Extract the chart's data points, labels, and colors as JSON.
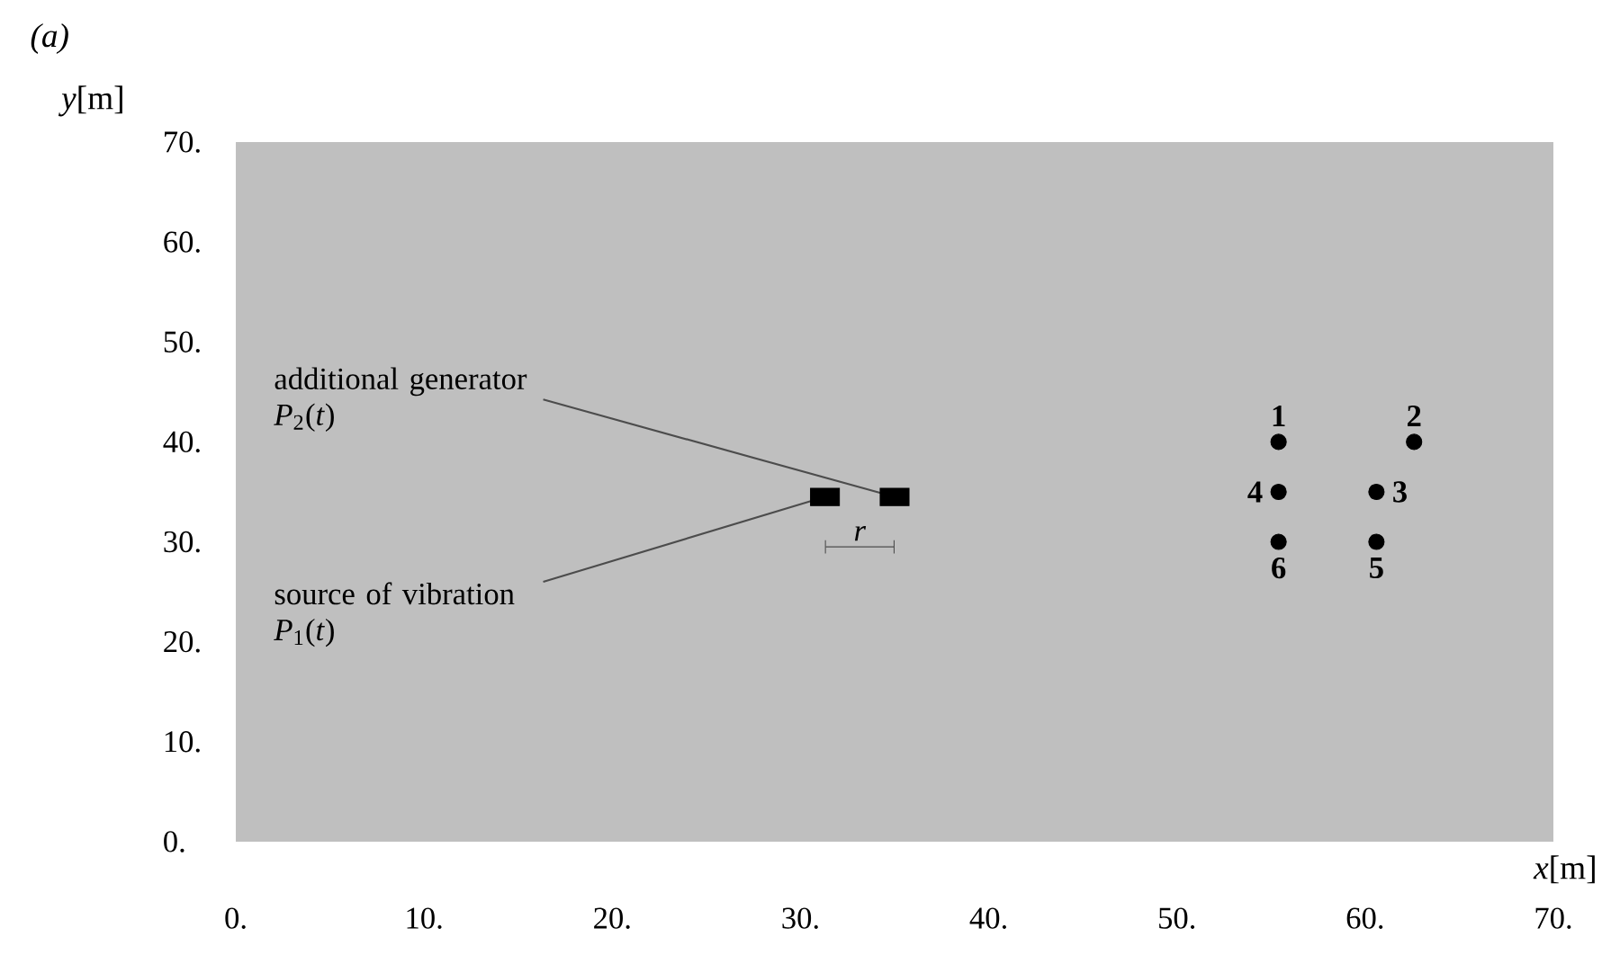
{
  "chart_data": {
    "type": "scatter",
    "title": "*(a)*",
    "xlabel": "*x*[m]",
    "ylabel": "*y*[m]",
    "xlim": [
      0,
      70
    ],
    "ylim": [
      0,
      70
    ],
    "xticks": [
      {
        "value": 0,
        "label": "0."
      },
      {
        "value": 10,
        "label": "10."
      },
      {
        "value": 20,
        "label": "20."
      },
      {
        "value": 30,
        "label": "30."
      },
      {
        "value": 40,
        "label": "40."
      },
      {
        "value": 50,
        "label": "50."
      },
      {
        "value": 60,
        "label": "60."
      },
      {
        "value": 70,
        "label": "70."
      }
    ],
    "yticks": [
      {
        "value": 0,
        "label": "0."
      },
      {
        "value": 10,
        "label": "10."
      },
      {
        "value": 20,
        "label": "20."
      },
      {
        "value": 30,
        "label": "30."
      },
      {
        "value": 40,
        "label": "40."
      },
      {
        "value": 50,
        "label": "50."
      },
      {
        "value": 60,
        "label": "60."
      },
      {
        "value": 70,
        "label": "70."
      }
    ],
    "grid": false,
    "series": [
      {
        "color": "#000000",
        "marker": "square",
        "x": [
          31.3,
          35
        ],
        "values": [
          34.5,
          34.5
        ]
      },
      {
        "color": "#000000",
        "marker": "circle",
        "x": [
          55.4,
          62.6,
          60.6,
          55.4,
          60.6,
          55.4
        ],
        "values": [
          40,
          40,
          35,
          35,
          30,
          30
        ]
      }
    ],
    "annotations": [
      {
        "text": "additional generator *P*$_{2}$(*t*)",
        "x": 35,
        "y": 34.5
      },
      {
        "text": "source of vibration *P*$_{1}$(*t*)",
        "x": 31.3,
        "y": 34.5
      },
      "*r*",
      {
        "text": "**1**",
        "x": 55.4,
        "y": 40
      },
      {
        "text": "**2**",
        "x": 62.6,
        "y": 40
      },
      {
        "text": "**3**",
        "x": 60.6,
        "y": 35
      },
      {
        "text": "**4**",
        "x": 55.4,
        "y": 35
      },
      {
        "text": "**5**",
        "x": 60.6,
        "y": 30
      },
      {
        "text": "**6**",
        "x": 55.4,
        "y": 30
      }
    ]
  }
}
